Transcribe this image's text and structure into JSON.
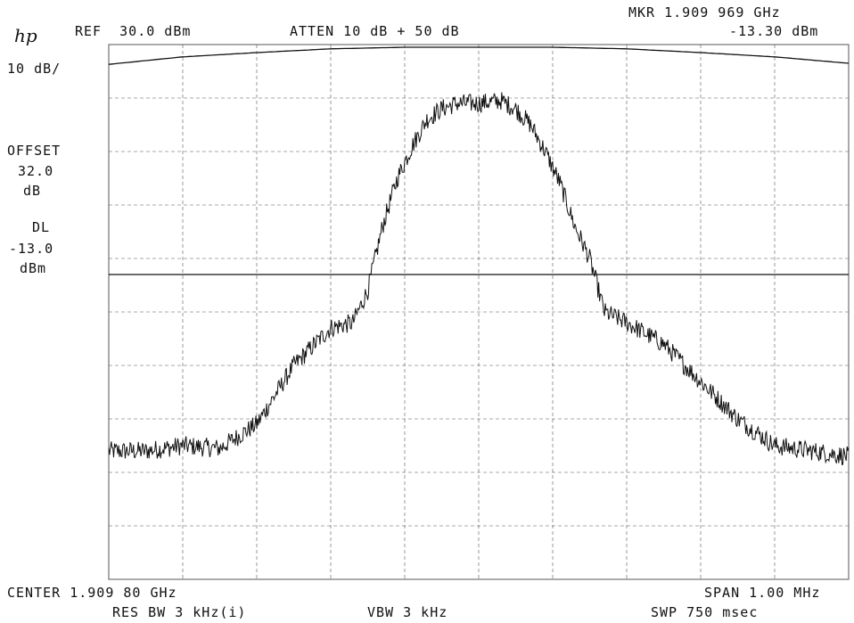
{
  "header": {
    "logo": "hp",
    "ref": "REF  30.0 dBm",
    "atten": "ATTEN 10 dB + 50 dB",
    "marker_freq": "MKR 1.909 969 GHz",
    "marker_level": "-13.30 dBm"
  },
  "left_annotations": {
    "scale": "10 dB/",
    "offset_label": "OFFSET",
    "offset_value": "32.0",
    "offset_unit": "dB",
    "dl_label": "DL",
    "dl_value": "-13.0",
    "dl_unit": "dBm"
  },
  "footer": {
    "center": "CENTER 1.909 80 GHz",
    "span": "SPAN 1.00 MHz",
    "res_bw": "RES BW 3 kHz(i)",
    "vbw": "VBW 3 kHz",
    "swp": "SWP 750 msec"
  },
  "colors": {
    "trace": "#111111",
    "grid": "#555555",
    "background": "#ffffff"
  },
  "chart_data": {
    "type": "line",
    "x_unit": "MHz offset from center",
    "xlim": [
      -0.5,
      0.5
    ],
    "ylim": [
      -70,
      30
    ],
    "y_divisions_db": 10,
    "grid": true,
    "display_line_dbm": -13.0,
    "series": [
      {
        "x": [
          -0.5,
          -0.45,
          -0.4,
          -0.35,
          -0.3,
          -0.25,
          -0.2,
          -0.17,
          -0.15,
          -0.13,
          -0.11,
          -0.09,
          -0.07,
          -0.05,
          -0.03,
          0.0,
          0.03,
          0.05,
          0.07,
          0.09,
          0.11,
          0.13,
          0.15,
          0.17,
          0.2,
          0.25,
          0.3,
          0.35,
          0.4,
          0.45,
          0.5
        ],
        "y": [
          -46,
          -46,
          -45,
          -45.5,
          -41,
          -30,
          -23,
          -22,
          -16,
          -4,
          5,
          11,
          16,
          18,
          19,
          19,
          19.5,
          18,
          15,
          10,
          4,
          -4,
          -10,
          -20,
          -22,
          -26,
          -33,
          -40,
          -45,
          -46,
          -47
        ]
      },
      {
        "x": [
          -0.5,
          -0.4,
          -0.3,
          -0.2,
          -0.1,
          0.0,
          0.1,
          0.2,
          0.3,
          0.4,
          0.5
        ],
        "y": [
          26.3,
          27.7,
          28.5,
          29.2,
          29.5,
          29.5,
          29.5,
          29.2,
          28.5,
          27.7,
          26.5
        ]
      }
    ]
  }
}
